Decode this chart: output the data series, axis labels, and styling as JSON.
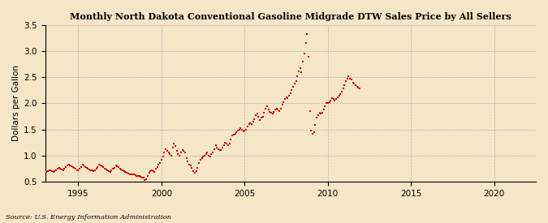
{
  "title": "Monthly North Dakota Conventional Gasoline Midgrade DTW Sales Price by All Sellers",
  "ylabel": "Dollars per Gallon",
  "source": "Source: U.S. Energy Information Administration",
  "background_color": "#f5e6c8",
  "dot_color": "#cc0000",
  "xlim": [
    1993.0,
    2022.5
  ],
  "ylim": [
    0.5,
    3.5
  ],
  "xticks": [
    1995,
    2000,
    2005,
    2010,
    2015,
    2020
  ],
  "yticks": [
    0.5,
    1.0,
    1.5,
    2.0,
    2.5,
    3.0,
    3.5
  ],
  "data": [
    [
      1993.08,
      0.68
    ],
    [
      1993.17,
      0.7
    ],
    [
      1993.25,
      0.71
    ],
    [
      1993.33,
      0.72
    ],
    [
      1993.42,
      0.7
    ],
    [
      1993.5,
      0.68
    ],
    [
      1993.58,
      0.7
    ],
    [
      1993.67,
      0.72
    ],
    [
      1993.75,
      0.75
    ],
    [
      1993.83,
      0.76
    ],
    [
      1993.92,
      0.75
    ],
    [
      1994.0,
      0.73
    ],
    [
      1994.08,
      0.72
    ],
    [
      1994.17,
      0.74
    ],
    [
      1994.25,
      0.78
    ],
    [
      1994.33,
      0.8
    ],
    [
      1994.42,
      0.82
    ],
    [
      1994.5,
      0.8
    ],
    [
      1994.58,
      0.79
    ],
    [
      1994.67,
      0.78
    ],
    [
      1994.75,
      0.76
    ],
    [
      1994.83,
      0.74
    ],
    [
      1994.92,
      0.72
    ],
    [
      1995.0,
      0.72
    ],
    [
      1995.08,
      0.75
    ],
    [
      1995.17,
      0.78
    ],
    [
      1995.25,
      0.82
    ],
    [
      1995.33,
      0.8
    ],
    [
      1995.42,
      0.78
    ],
    [
      1995.5,
      0.76
    ],
    [
      1995.58,
      0.75
    ],
    [
      1995.67,
      0.73
    ],
    [
      1995.75,
      0.72
    ],
    [
      1995.83,
      0.71
    ],
    [
      1995.92,
      0.7
    ],
    [
      1996.0,
      0.71
    ],
    [
      1996.08,
      0.74
    ],
    [
      1996.17,
      0.78
    ],
    [
      1996.25,
      0.82
    ],
    [
      1996.33,
      0.8
    ],
    [
      1996.42,
      0.79
    ],
    [
      1996.5,
      0.77
    ],
    [
      1996.58,
      0.75
    ],
    [
      1996.67,
      0.73
    ],
    [
      1996.75,
      0.72
    ],
    [
      1996.83,
      0.7
    ],
    [
      1996.92,
      0.69
    ],
    [
      1997.0,
      0.72
    ],
    [
      1997.08,
      0.74
    ],
    [
      1997.17,
      0.76
    ],
    [
      1997.25,
      0.8
    ],
    [
      1997.33,
      0.79
    ],
    [
      1997.42,
      0.77
    ],
    [
      1997.5,
      0.75
    ],
    [
      1997.58,
      0.73
    ],
    [
      1997.67,
      0.72
    ],
    [
      1997.75,
      0.7
    ],
    [
      1997.83,
      0.68
    ],
    [
      1997.92,
      0.66
    ],
    [
      1998.0,
      0.65
    ],
    [
      1998.08,
      0.64
    ],
    [
      1998.17,
      0.63
    ],
    [
      1998.25,
      0.64
    ],
    [
      1998.33,
      0.63
    ],
    [
      1998.42,
      0.62
    ],
    [
      1998.5,
      0.61
    ],
    [
      1998.58,
      0.6
    ],
    [
      1998.67,
      0.6
    ],
    [
      1998.75,
      0.59
    ],
    [
      1998.83,
      0.58
    ],
    [
      1998.92,
      0.57
    ],
    [
      1999.0,
      0.52
    ],
    [
      1999.08,
      0.54
    ],
    [
      1999.17,
      0.6
    ],
    [
      1999.25,
      0.66
    ],
    [
      1999.33,
      0.7
    ],
    [
      1999.42,
      0.72
    ],
    [
      1999.5,
      0.7
    ],
    [
      1999.58,
      0.68
    ],
    [
      1999.67,
      0.74
    ],
    [
      1999.75,
      0.78
    ],
    [
      1999.83,
      0.82
    ],
    [
      1999.92,
      0.86
    ],
    [
      2000.0,
      0.92
    ],
    [
      2000.08,
      0.98
    ],
    [
      2000.17,
      1.05
    ],
    [
      2000.25,
      1.12
    ],
    [
      2000.33,
      1.08
    ],
    [
      2000.42,
      1.05
    ],
    [
      2000.5,
      1.02
    ],
    [
      2000.58,
      1.0
    ],
    [
      2000.67,
      1.15
    ],
    [
      2000.75,
      1.22
    ],
    [
      2000.83,
      1.18
    ],
    [
      2000.92,
      1.08
    ],
    [
      2001.0,
      1.02
    ],
    [
      2001.08,
      1.0
    ],
    [
      2001.17,
      1.05
    ],
    [
      2001.25,
      1.1
    ],
    [
      2001.33,
      1.08
    ],
    [
      2001.42,
      1.05
    ],
    [
      2001.5,
      0.95
    ],
    [
      2001.58,
      0.88
    ],
    [
      2001.67,
      0.82
    ],
    [
      2001.75,
      0.8
    ],
    [
      2001.83,
      0.76
    ],
    [
      2001.92,
      0.7
    ],
    [
      2002.0,
      0.66
    ],
    [
      2002.08,
      0.7
    ],
    [
      2002.17,
      0.76
    ],
    [
      2002.25,
      0.85
    ],
    [
      2002.33,
      0.92
    ],
    [
      2002.42,
      0.95
    ],
    [
      2002.5,
      0.98
    ],
    [
      2002.58,
      1.0
    ],
    [
      2002.67,
      1.02
    ],
    [
      2002.75,
      1.05
    ],
    [
      2002.83,
      1.0
    ],
    [
      2002.92,
      0.98
    ],
    [
      2003.0,
      1.02
    ],
    [
      2003.08,
      1.05
    ],
    [
      2003.17,
      1.12
    ],
    [
      2003.25,
      1.2
    ],
    [
      2003.33,
      1.15
    ],
    [
      2003.42,
      1.12
    ],
    [
      2003.5,
      1.1
    ],
    [
      2003.58,
      1.1
    ],
    [
      2003.67,
      1.15
    ],
    [
      2003.75,
      1.2
    ],
    [
      2003.83,
      1.24
    ],
    [
      2003.92,
      1.22
    ],
    [
      2004.0,
      1.2
    ],
    [
      2004.08,
      1.22
    ],
    [
      2004.17,
      1.3
    ],
    [
      2004.25,
      1.38
    ],
    [
      2004.33,
      1.4
    ],
    [
      2004.42,
      1.42
    ],
    [
      2004.5,
      1.44
    ],
    [
      2004.58,
      1.47
    ],
    [
      2004.67,
      1.5
    ],
    [
      2004.75,
      1.52
    ],
    [
      2004.83,
      1.5
    ],
    [
      2004.92,
      1.46
    ],
    [
      2005.0,
      1.48
    ],
    [
      2005.08,
      1.5
    ],
    [
      2005.17,
      1.56
    ],
    [
      2005.25,
      1.6
    ],
    [
      2005.33,
      1.62
    ],
    [
      2005.42,
      1.6
    ],
    [
      2005.5,
      1.65
    ],
    [
      2005.58,
      1.7
    ],
    [
      2005.67,
      1.78
    ],
    [
      2005.75,
      1.8
    ],
    [
      2005.83,
      1.74
    ],
    [
      2005.92,
      1.68
    ],
    [
      2006.0,
      1.72
    ],
    [
      2006.08,
      1.74
    ],
    [
      2006.17,
      1.82
    ],
    [
      2006.25,
      1.9
    ],
    [
      2006.33,
      1.95
    ],
    [
      2006.42,
      1.88
    ],
    [
      2006.5,
      1.84
    ],
    [
      2006.58,
      1.82
    ],
    [
      2006.67,
      1.8
    ],
    [
      2006.75,
      1.84
    ],
    [
      2006.83,
      1.88
    ],
    [
      2006.92,
      1.9
    ],
    [
      2007.0,
      1.88
    ],
    [
      2007.08,
      1.85
    ],
    [
      2007.17,
      1.9
    ],
    [
      2007.25,
      1.98
    ],
    [
      2007.33,
      2.02
    ],
    [
      2007.42,
      2.08
    ],
    [
      2007.5,
      2.12
    ],
    [
      2007.58,
      2.1
    ],
    [
      2007.67,
      2.15
    ],
    [
      2007.75,
      2.2
    ],
    [
      2007.83,
      2.25
    ],
    [
      2007.92,
      2.32
    ],
    [
      2008.0,
      2.38
    ],
    [
      2008.08,
      2.42
    ],
    [
      2008.17,
      2.52
    ],
    [
      2008.25,
      2.62
    ],
    [
      2008.33,
      2.68
    ],
    [
      2008.42,
      2.6
    ],
    [
      2008.5,
      2.8
    ],
    [
      2008.58,
      2.95
    ],
    [
      2008.67,
      3.15
    ],
    [
      2008.75,
      3.33
    ],
    [
      2008.83,
      2.9
    ],
    [
      2008.92,
      1.85
    ],
    [
      2009.0,
      1.48
    ],
    [
      2009.08,
      1.42
    ],
    [
      2009.17,
      1.45
    ],
    [
      2009.25,
      1.58
    ],
    [
      2009.33,
      1.72
    ],
    [
      2009.42,
      1.78
    ],
    [
      2009.5,
      1.82
    ],
    [
      2009.58,
      1.8
    ],
    [
      2009.67,
      1.82
    ],
    [
      2009.75,
      1.88
    ],
    [
      2009.83,
      1.95
    ],
    [
      2009.92,
      2.0
    ],
    [
      2010.0,
      2.0
    ],
    [
      2010.08,
      2.02
    ],
    [
      2010.17,
      2.06
    ],
    [
      2010.25,
      2.1
    ],
    [
      2010.33,
      2.08
    ],
    [
      2010.42,
      2.05
    ],
    [
      2010.5,
      2.08
    ],
    [
      2010.58,
      2.12
    ],
    [
      2010.67,
      2.15
    ],
    [
      2010.75,
      2.18
    ],
    [
      2010.83,
      2.22
    ],
    [
      2010.92,
      2.28
    ],
    [
      2011.0,
      2.35
    ],
    [
      2011.08,
      2.42
    ],
    [
      2011.17,
      2.48
    ],
    [
      2011.25,
      2.52
    ],
    [
      2011.33,
      2.48
    ],
    [
      2011.42,
      2.45
    ],
    [
      2011.5,
      2.4
    ],
    [
      2011.58,
      2.38
    ],
    [
      2011.67,
      2.35
    ],
    [
      2011.75,
      2.32
    ],
    [
      2011.83,
      2.3
    ],
    [
      2011.92,
      2.28
    ]
  ]
}
